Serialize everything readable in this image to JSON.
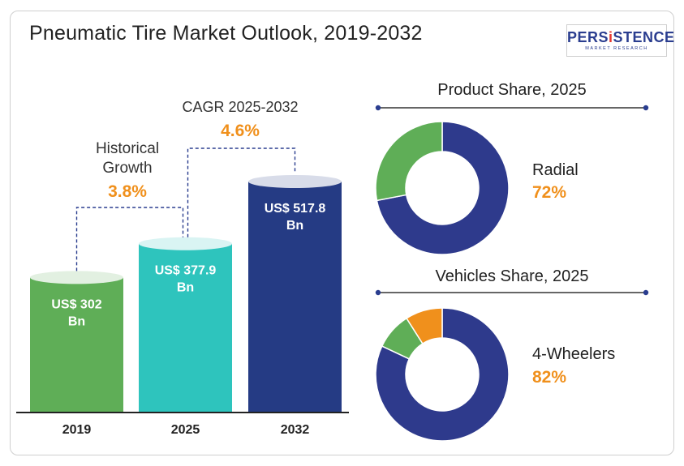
{
  "title": "Pneumatic Tire Market Outlook, 2019-2032",
  "logo": {
    "main_prefix": "PERS",
    "main_accent": "i",
    "main_suffix": "STENCE",
    "sub": "MARKET RESEARCH"
  },
  "colors": {
    "bar_2019": "#5fae57",
    "bar_2025": "#2ec4bd",
    "bar_2032": "#253b84",
    "orange": "#f0901c",
    "donut_main": "#2e3a8c",
    "donut_green": "#5fae57",
    "donut_orange": "#f0901c"
  },
  "chart_data": [
    {
      "type": "bar",
      "categories": [
        "2019",
        "2025",
        "2032"
      ],
      "values": [
        302,
        377.9,
        517.8
      ],
      "bar_labels": [
        "US$ 302 Bn",
        "US$ 377.9 Bn",
        "US$ 517.8 Bn"
      ],
      "annotations": [
        {
          "label_lines": [
            "Historical",
            "Growth"
          ],
          "value": "3.8%"
        },
        {
          "label_lines": [
            "CAGR 2025-2032"
          ],
          "value": "4.6%"
        }
      ]
    },
    {
      "type": "pie",
      "title": "Product Share, 2025",
      "highlight_label": "Radial",
      "highlight_value": "72%",
      "slices": [
        {
          "value": 72,
          "color": "#2e3a8c"
        },
        {
          "value": 28,
          "color": "#5fae57"
        }
      ]
    },
    {
      "type": "pie",
      "title": "Vehicles Share, 2025",
      "highlight_label": "4-Wheelers",
      "highlight_value": "82%",
      "slices": [
        {
          "value": 82,
          "color": "#2e3a8c"
        },
        {
          "value": 9,
          "color": "#5fae57"
        },
        {
          "value": 9,
          "color": "#f0901c"
        }
      ]
    }
  ]
}
